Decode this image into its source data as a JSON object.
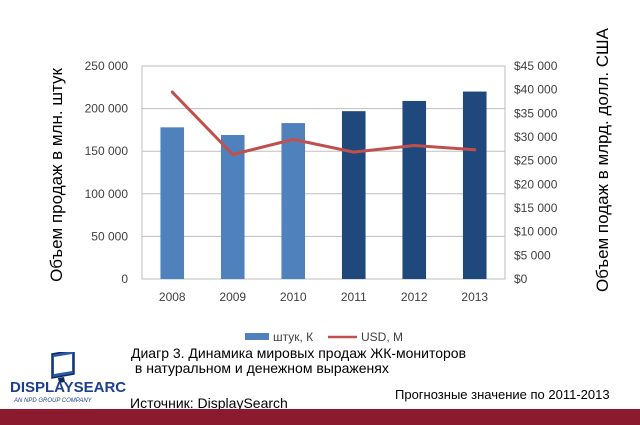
{
  "chart_data": {
    "type": "bar",
    "categories": [
      "2008",
      "2009",
      "2010",
      "2011",
      "2012",
      "2013"
    ],
    "series": [
      {
        "name": "штук, К",
        "chart_type": "bar",
        "axis": "left",
        "values": [
          178000,
          169000,
          183000,
          197000,
          209000,
          220000
        ],
        "colors": [
          "#4f81bd",
          "#4f81bd",
          "#4f81bd",
          "#1f497d",
          "#1f497d",
          "#1f497d"
        ]
      },
      {
        "name": "USD, M",
        "chart_type": "line",
        "axis": "right",
        "values": [
          39500,
          26300,
          29500,
          26800,
          28200,
          27300
        ],
        "color": "#c0504d"
      }
    ],
    "ylim_left": [
      0,
      250000
    ],
    "ylim_right": [
      0,
      45000
    ],
    "yticks_left": [
      "0",
      "50 000",
      "100 000",
      "150 000",
      "200 000",
      "250 000"
    ],
    "yticks_right": [
      "$0",
      "$5 000",
      "$10 000",
      "$15 000",
      "$20 000",
      "$25 000",
      "$30 000",
      "$35 000",
      "$40 000",
      "$45 000"
    ],
    "ylabel_left": "Объем продаж в млн. штук",
    "ylabel_right": "Объем подаж в млрд. долл. США",
    "grid": true,
    "legend_position": "bottom"
  },
  "caption": {
    "title": "Диагр 3. Динамика мировых продаж ЖК-мониторов\n в натуральном и денежном выраженях",
    "forecast_note": "Прогнозные значение по 2011-2013",
    "source": "Источник: DisplaySearch"
  },
  "logo": {
    "name": "DISPLAYSEARCH",
    "tagline": "AN NPD GROUP COMPANY"
  },
  "colors": {
    "footer_bar": "#8b1a2e",
    "bar_history": "#4f81bd",
    "bar_forecast": "#1f497d",
    "line": "#c0504d"
  }
}
